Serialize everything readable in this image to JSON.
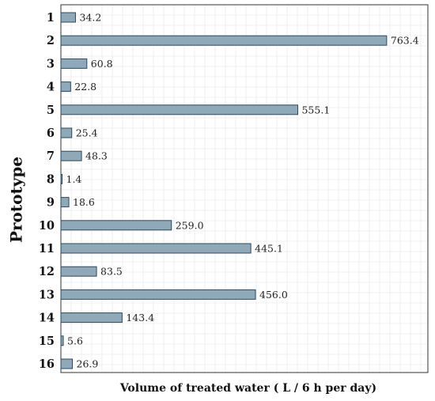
{
  "chart_data": {
    "type": "bar",
    "orientation": "horizontal",
    "categories": [
      "1",
      "2",
      "3",
      "4",
      "5",
      "6",
      "7",
      "8",
      "9",
      "10",
      "11",
      "12",
      "13",
      "14",
      "15",
      "16"
    ],
    "values": [
      34.2,
      763.4,
      60.8,
      22.8,
      555.1,
      25.4,
      48.3,
      1.4,
      18.6,
      259.0,
      445.1,
      83.5,
      456.0,
      143.4,
      5.6,
      26.9
    ],
    "data_labels": [
      "34.2",
      "763.4",
      "60.8",
      "22.8",
      "555.1",
      "25.4",
      "48.3",
      "1.4",
      "18.6",
      "259.0",
      "445.1",
      "83.5",
      "456.0",
      "143.4",
      "5.6",
      "26.9"
    ],
    "title": "",
    "xlabel": "Volume of treated water ( L / 6 h  per day)",
    "ylabel": "Prototype",
    "xlim": [
      0,
      860
    ],
    "grid": true,
    "legend": "none",
    "bar_color": "#8fa9b8",
    "bar_edge_color": "#2c4a5e"
  }
}
